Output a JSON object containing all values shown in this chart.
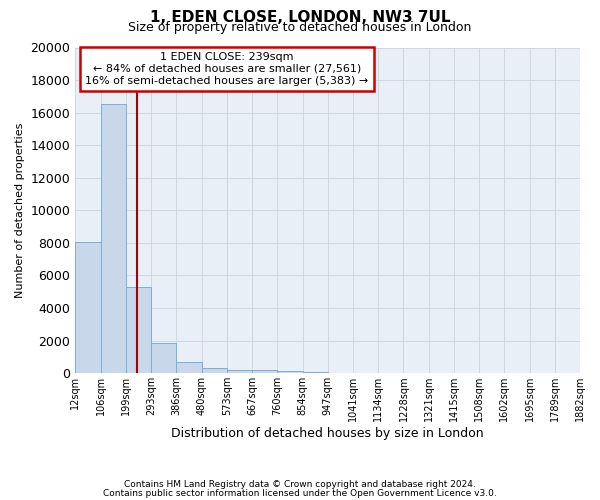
{
  "title": "1, EDEN CLOSE, LONDON, NW3 7UL",
  "subtitle": "Size of property relative to detached houses in London",
  "xlabel": "Distribution of detached houses by size in London",
  "ylabel": "Number of detached properties",
  "annotation_line1": "1 EDEN CLOSE: 239sqm",
  "annotation_line2": "← 84% of detached houses are smaller (27,561)",
  "annotation_line3": "16% of semi-detached houses are larger (5,383) →",
  "bar_edges": [
    12,
    106,
    199,
    293,
    386,
    480,
    573,
    667,
    760,
    854,
    947,
    1041,
    1134,
    1228,
    1321,
    1415,
    1508,
    1602,
    1695,
    1789,
    1882
  ],
  "bar_heights": [
    8050,
    16500,
    5300,
    1880,
    700,
    320,
    220,
    165,
    155,
    95,
    0,
    0,
    0,
    0,
    0,
    0,
    0,
    0,
    0,
    0
  ],
  "bar_color": "#c8d8ea",
  "bar_edgecolor": "#7aafd4",
  "vline_color": "#aa0000",
  "vline_x": 239,
  "ylim": [
    0,
    20000
  ],
  "yticks": [
    0,
    2000,
    4000,
    6000,
    8000,
    10000,
    12000,
    14000,
    16000,
    18000,
    20000
  ],
  "tick_labels": [
    "12sqm",
    "106sqm",
    "199sqm",
    "293sqm",
    "386sqm",
    "480sqm",
    "573sqm",
    "667sqm",
    "760sqm",
    "854sqm",
    "947sqm",
    "1041sqm",
    "1134sqm",
    "1228sqm",
    "1321sqm",
    "1415sqm",
    "1508sqm",
    "1602sqm",
    "1695sqm",
    "1789sqm",
    "1882sqm"
  ],
  "footnote1": "Contains HM Land Registry data © Crown copyright and database right 2024.",
  "footnote2": "Contains public sector information licensed under the Open Government Licence v3.0.",
  "background_color": "#ffffff",
  "plot_bg_color": "#e8eff7",
  "grid_color": "#c8d4e4",
  "annotation_box_edgecolor": "#cc0000",
  "annotation_box_facecolor": "#ffffff",
  "title_fontsize": 11,
  "subtitle_fontsize": 9,
  "ylabel_fontsize": 8,
  "xlabel_fontsize": 9,
  "tick_fontsize": 7,
  "annot_fontsize": 8
}
